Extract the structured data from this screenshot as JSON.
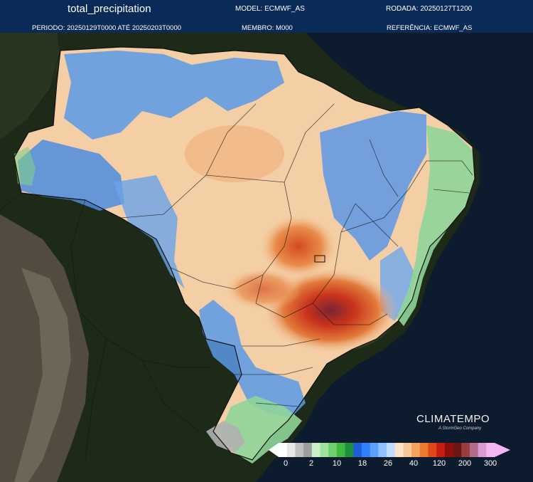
{
  "header": {
    "title": "total_precipitation",
    "model": "MODEL: ECMWF_AS",
    "rodada": "RODADA: 20250127T1200",
    "periodo": "PERIODO: 20250129T0000 ATÉ 20250203T0000",
    "membro": "MEMBRO: M000",
    "referencia": "REFERÊNCIA: ECMWF_AS"
  },
  "brand": {
    "name": "CLIMATEMPO",
    "tagline": "A StormGeo Company"
  },
  "legend": {
    "ticks": [
      "0",
      "2",
      "10",
      "18",
      "26",
      "40",
      "120",
      "200",
      "300"
    ],
    "colors": [
      "#ffffff",
      "#e6e6e6",
      "#bfbfbf",
      "#9e9e9e",
      "#c9f0c9",
      "#9ee39e",
      "#6fcf6f",
      "#3fb83f",
      "#1e8f3c",
      "#1e5fd8",
      "#2f80ff",
      "#5da0ff",
      "#8fc0ff",
      "#bfdcff",
      "#fbe3c6",
      "#f7c797",
      "#f2a35f",
      "#ea7a2e",
      "#e0481b",
      "#c81d12",
      "#8f0f0f",
      "#6e1616",
      "#9b3d3d",
      "#b36a8a",
      "#d99ad3",
      "#f3b6f0"
    ]
  },
  "map_colors": {
    "ocean": "#0d1b2e",
    "land_dark": "#1e2a1a",
    "andes": "#6b6152",
    "blue": "#4f8fe6",
    "light_blue": "#9cc3f2",
    "peach": "#f6d0a6",
    "orange": "#e88b47",
    "red": "#d0371c",
    "dark_red": "#8f2a30",
    "green": "#8fd38f",
    "grey": "#a8a8a8"
  }
}
